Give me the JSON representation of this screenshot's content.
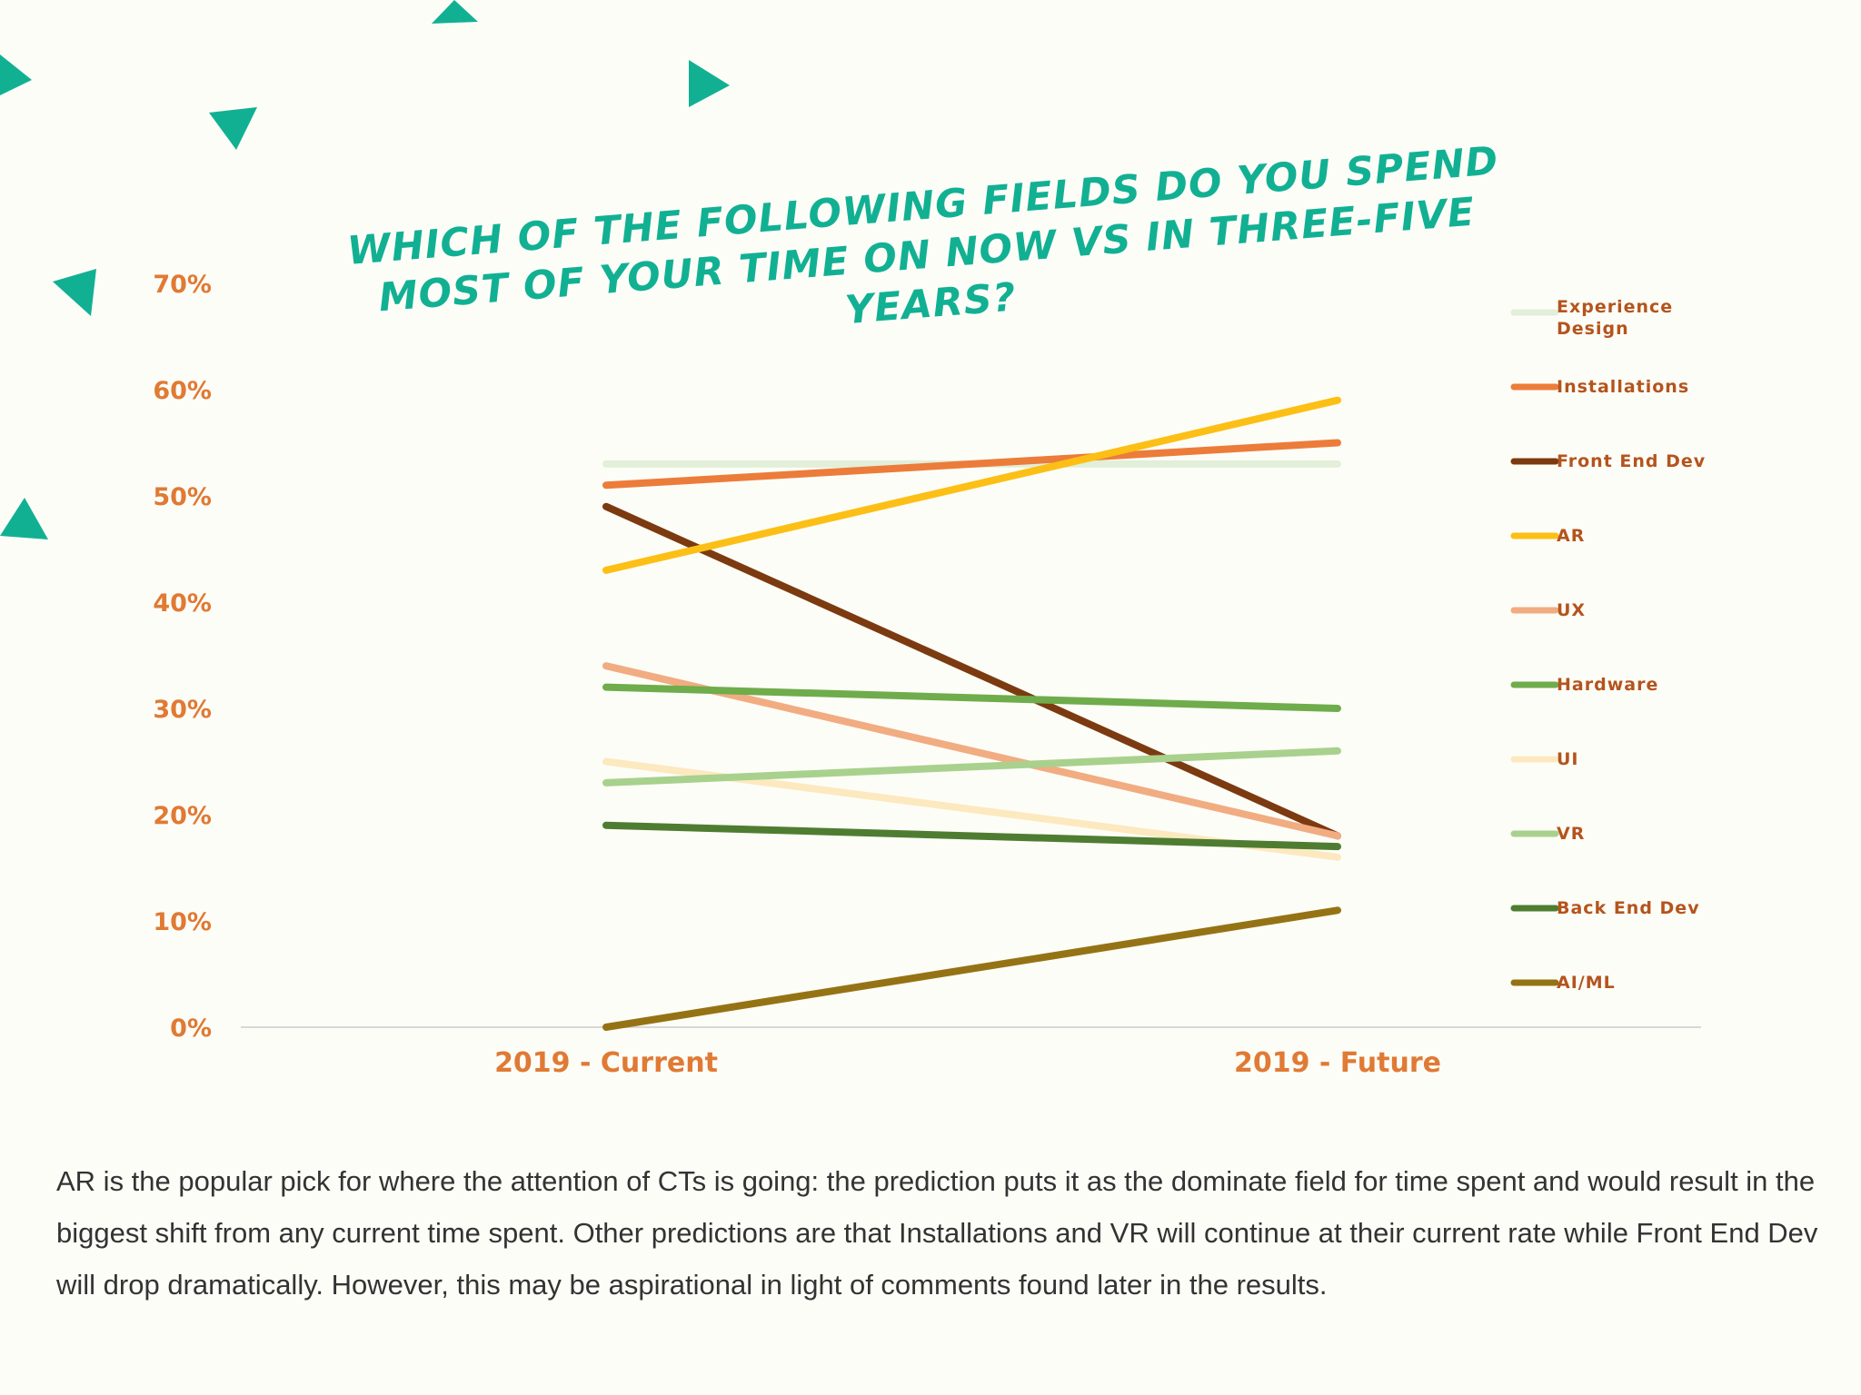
{
  "colors": {
    "background": "#fdfdf7",
    "title": "#12b093",
    "axis_labels": "#e07a34",
    "legend_text": "#b4541d",
    "decoration": "#12b093",
    "caption": "#333333"
  },
  "chart_data": {
    "type": "line",
    "title": "Which of the following fields do you spend most of your time on now vs in three-five years?",
    "xlabel": "",
    "ylabel": "",
    "categories": [
      "2019 - Current",
      "2019 - Future"
    ],
    "ylim": [
      0,
      70
    ],
    "yticks": [
      "0%",
      "10%",
      "20%",
      "30%",
      "40%",
      "50%",
      "60%",
      "70%"
    ],
    "grid": false,
    "legend_position": "right",
    "series": [
      {
        "name": "Experience Design",
        "values": [
          53,
          53
        ],
        "color": "#e2efd9"
      },
      {
        "name": "Installations",
        "values": [
          51,
          55
        ],
        "color": "#ec7c3a"
      },
      {
        "name": "Front End Dev",
        "values": [
          49,
          18
        ],
        "color": "#7c3a10"
      },
      {
        "name": "AR",
        "values": [
          43,
          59
        ],
        "color": "#fcbf15"
      },
      {
        "name": "UX",
        "values": [
          34,
          18
        ],
        "color": "#f1ac82"
      },
      {
        "name": "Hardware",
        "values": [
          32,
          30
        ],
        "color": "#6fac4b"
      },
      {
        "name": "UI",
        "values": [
          25,
          16
        ],
        "color": "#fde9c0"
      },
      {
        "name": "VR",
        "values": [
          23,
          26
        ],
        "color": "#a8d18d"
      },
      {
        "name": "Back End Dev",
        "values": [
          19,
          17
        ],
        "color": "#4e7d32"
      },
      {
        "name": "AI/ML",
        "values": [
          0,
          11
        ],
        "color": "#957315"
      }
    ]
  },
  "caption": "AR is the popular pick for where the attention of CTs is going: the prediction puts it as the dominate field for time spent and would result in the biggest shift from any current time spent. Other predictions are that Installations and VR will continue at their current rate while Front End Dev will drop dramatically. However, this may be aspirational in light of comments found later in the results."
}
